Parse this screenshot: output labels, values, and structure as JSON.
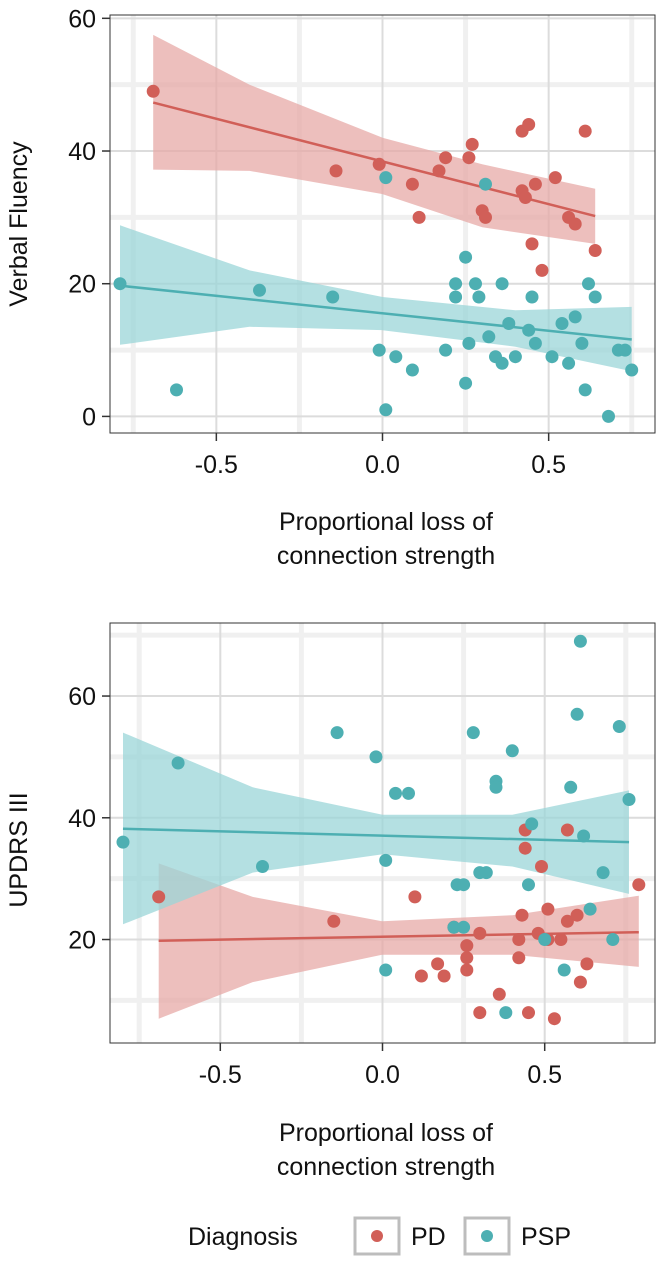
{
  "colors": {
    "pd": "#D15F58",
    "psp": "#4DAFB2",
    "pd_band": "#E7A9A7",
    "psp_band": "#9BD6D8",
    "grid_major": "#DCDCDC",
    "grid_minor": "#F0F0F0",
    "axis": "#333333",
    "text": "#111111"
  },
  "legend": {
    "title": "Diagnosis",
    "items": [
      {
        "label": "PD",
        "color": "#D15F58"
      },
      {
        "label": "PSP",
        "color": "#4DAFB2"
      }
    ]
  },
  "chart_data": [
    {
      "type": "scatter",
      "title": "",
      "xlabel": [
        "Proportional loss of",
        "connection strength"
      ],
      "ylabel": "Verbal Fluency",
      "xlim": [
        -0.82,
        0.82
      ],
      "ylim": [
        -2.5,
        60.5
      ],
      "x_major_ticks": [
        -0.5,
        0.0,
        0.5
      ],
      "x_tick_labels": [
        "-0.5",
        "0.0",
        "0.5"
      ],
      "x_minor_ticks": [
        -0.75,
        -0.25,
        0.25,
        0.75
      ],
      "y_major_ticks": [
        0,
        20,
        40,
        60
      ],
      "y_tick_labels": [
        "0",
        "20",
        "40",
        "60"
      ],
      "y_minor_ticks": [
        10,
        30,
        50
      ],
      "series": [
        {
          "name": "PD",
          "points": [
            [
              -0.69,
              49
            ],
            [
              -0.14,
              37
            ],
            [
              -0.01,
              38
            ],
            [
              0.09,
              35
            ],
            [
              0.11,
              30
            ],
            [
              0.17,
              37
            ],
            [
              0.19,
              39
            ],
            [
              0.26,
              39
            ],
            [
              0.27,
              41
            ],
            [
              0.3,
              31
            ],
            [
              0.31,
              30
            ],
            [
              0.42,
              34
            ],
            [
              0.43,
              33
            ],
            [
              0.42,
              43
            ],
            [
              0.44,
              44
            ],
            [
              0.45,
              26
            ],
            [
              0.46,
              35
            ],
            [
              0.48,
              22
            ],
            [
              0.52,
              36
            ],
            [
              0.56,
              30
            ],
            [
              0.58,
              29
            ],
            [
              0.61,
              43
            ],
            [
              0.64,
              25
            ]
          ],
          "fit": {
            "x": [
              -0.69,
              0.64
            ],
            "y": [
              47.3,
              30.2
            ]
          },
          "band": {
            "x": [
              -0.69,
              -0.4,
              0.0,
              0.3,
              0.64
            ],
            "upper": [
              57.5,
              50.0,
              42.0,
              38.0,
              34.3
            ],
            "lower": [
              37.2,
              37.0,
              33.5,
              28.5,
              26.0
            ]
          }
        },
        {
          "name": "PSP",
          "points": [
            [
              -0.79,
              20
            ],
            [
              -0.62,
              4
            ],
            [
              -0.37,
              19
            ],
            [
              -0.15,
              18
            ],
            [
              -0.01,
              10
            ],
            [
              0.01,
              36
            ],
            [
              0.01,
              1
            ],
            [
              0.04,
              9
            ],
            [
              0.09,
              7
            ],
            [
              0.19,
              10
            ],
            [
              0.22,
              20
            ],
            [
              0.22,
              18
            ],
            [
              0.25,
              24
            ],
            [
              0.25,
              5
            ],
            [
              0.26,
              11
            ],
            [
              0.28,
              20
            ],
            [
              0.29,
              18
            ],
            [
              0.31,
              35
            ],
            [
              0.32,
              12
            ],
            [
              0.34,
              9
            ],
            [
              0.36,
              8
            ],
            [
              0.36,
              20
            ],
            [
              0.38,
              14
            ],
            [
              0.4,
              9
            ],
            [
              0.44,
              13
            ],
            [
              0.45,
              18
            ],
            [
              0.46,
              11
            ],
            [
              0.51,
              9
            ],
            [
              0.54,
              14
            ],
            [
              0.56,
              8
            ],
            [
              0.58,
              15
            ],
            [
              0.6,
              11
            ],
            [
              0.61,
              4
            ],
            [
              0.62,
              20
            ],
            [
              0.64,
              18
            ],
            [
              0.68,
              0
            ],
            [
              0.71,
              10
            ],
            [
              0.73,
              10
            ],
            [
              0.75,
              7
            ]
          ],
          "fit": {
            "x": [
              -0.79,
              0.75
            ],
            "y": [
              19.7,
              11.6
            ]
          },
          "band": {
            "x": [
              -0.79,
              -0.4,
              0.0,
              0.4,
              0.75
            ],
            "upper": [
              28.8,
              22.0,
              18.0,
              16.0,
              16.5
            ],
            "lower": [
              10.8,
              13.5,
              13.0,
              10.5,
              6.8
            ]
          }
        }
      ]
    },
    {
      "type": "scatter",
      "title": "",
      "xlabel": [
        "Proportional loss of",
        "connection strength"
      ],
      "ylabel": "UPDRS III",
      "xlim": [
        -0.84,
        0.84
      ],
      "ylim": [
        3.0,
        72.0
      ],
      "x_major_ticks": [
        -0.5,
        0.0,
        0.5
      ],
      "x_tick_labels": [
        "-0.5",
        "0.0",
        "0.5"
      ],
      "x_minor_ticks": [
        -0.75,
        -0.25,
        0.25,
        0.75
      ],
      "y_major_ticks": [
        20,
        40,
        60
      ],
      "y_tick_labels": [
        "20",
        "40",
        "60"
      ],
      "y_minor_ticks": [
        10,
        30,
        50,
        70
      ],
      "series": [
        {
          "name": "PD",
          "points": [
            [
              -0.69,
              27
            ],
            [
              -0.15,
              23
            ],
            [
              0.1,
              27
            ],
            [
              0.12,
              14
            ],
            [
              0.17,
              16
            ],
            [
              0.19,
              14
            ],
            [
              0.22,
              22
            ],
            [
              0.26,
              17
            ],
            [
              0.26,
              19
            ],
            [
              0.26,
              15
            ],
            [
              0.3,
              21
            ],
            [
              0.3,
              8
            ],
            [
              0.36,
              11
            ],
            [
              0.42,
              20
            ],
            [
              0.42,
              17
            ],
            [
              0.43,
              24
            ],
            [
              0.44,
              38
            ],
            [
              0.44,
              35
            ],
            [
              0.45,
              8
            ],
            [
              0.48,
              21
            ],
            [
              0.49,
              32
            ],
            [
              0.51,
              25
            ],
            [
              0.51,
              20
            ],
            [
              0.53,
              7
            ],
            [
              0.55,
              20
            ],
            [
              0.57,
              23
            ],
            [
              0.57,
              38
            ],
            [
              0.61,
              13
            ],
            [
              0.6,
              24
            ],
            [
              0.63,
              16
            ],
            [
              0.79,
              29
            ]
          ],
          "fit": {
            "x": [
              -0.69,
              0.79
            ],
            "y": [
              19.8,
              21.2
            ]
          },
          "band": {
            "x": [
              -0.69,
              -0.4,
              0.0,
              0.4,
              0.79
            ],
            "upper": [
              32.5,
              27.0,
              23.0,
              24.0,
              27.2
            ],
            "lower": [
              7.0,
              13.0,
              17.5,
              17.5,
              15.5
            ]
          }
        },
        {
          "name": "PSP",
          "points": [
            [
              -0.8,
              36
            ],
            [
              -0.63,
              49
            ],
            [
              -0.37,
              32
            ],
            [
              -0.14,
              54
            ],
            [
              -0.02,
              50
            ],
            [
              0.01,
              33
            ],
            [
              0.01,
              15
            ],
            [
              0.04,
              44
            ],
            [
              0.08,
              44
            ],
            [
              0.22,
              22
            ],
            [
              0.23,
              29
            ],
            [
              0.25,
              22
            ],
            [
              0.25,
              29
            ],
            [
              0.28,
              54
            ],
            [
              0.3,
              31
            ],
            [
              0.32,
              31
            ],
            [
              0.35,
              46
            ],
            [
              0.35,
              45
            ],
            [
              0.38,
              8
            ],
            [
              0.4,
              51
            ],
            [
              0.45,
              29
            ],
            [
              0.46,
              39
            ],
            [
              0.5,
              20
            ],
            [
              0.56,
              15
            ],
            [
              0.58,
              45
            ],
            [
              0.6,
              57
            ],
            [
              0.61,
              69
            ],
            [
              0.62,
              37
            ],
            [
              0.64,
              25
            ],
            [
              0.68,
              31
            ],
            [
              0.71,
              20
            ],
            [
              0.73,
              55
            ],
            [
              0.76,
              43
            ]
          ],
          "fit": {
            "x": [
              -0.8,
              0.76
            ],
            "y": [
              38.2,
              36.0
            ]
          },
          "band": {
            "x": [
              -0.8,
              -0.4,
              0.0,
              0.4,
              0.76
            ],
            "upper": [
              54.0,
              45.0,
              40.5,
              40.5,
              44.5
            ],
            "lower": [
              22.5,
              31.0,
              34.0,
              32.0,
              27.5
            ]
          }
        }
      ]
    }
  ]
}
